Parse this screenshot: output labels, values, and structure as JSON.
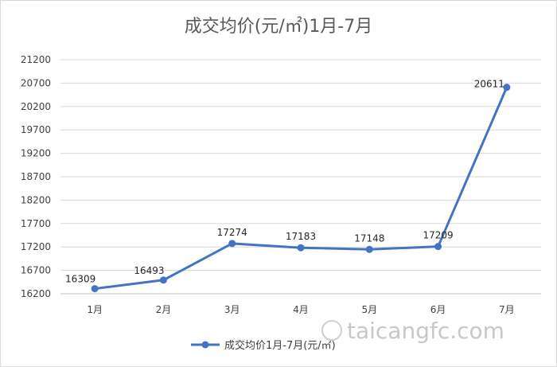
{
  "chart_data": {
    "type": "line",
    "title": "成交均价(元/㎡)1月-7月",
    "categories": [
      "1月",
      "2月",
      "3月",
      "4月",
      "5月",
      "6月",
      "7月"
    ],
    "series": [
      {
        "name": "成交均价1月-7月(元/㎡)",
        "values": [
          16309,
          16493,
          17274,
          17183,
          17148,
          17209,
          20611
        ]
      }
    ],
    "ylim": [
      16200,
      21200
    ],
    "yticks": [
      16200,
      16700,
      17200,
      17700,
      18200,
      18700,
      19200,
      19700,
      20200,
      20700,
      21200
    ],
    "grid": true,
    "legend_position": "bottom",
    "line_color": "#4472c4"
  },
  "watermark": "taicangfc.com"
}
